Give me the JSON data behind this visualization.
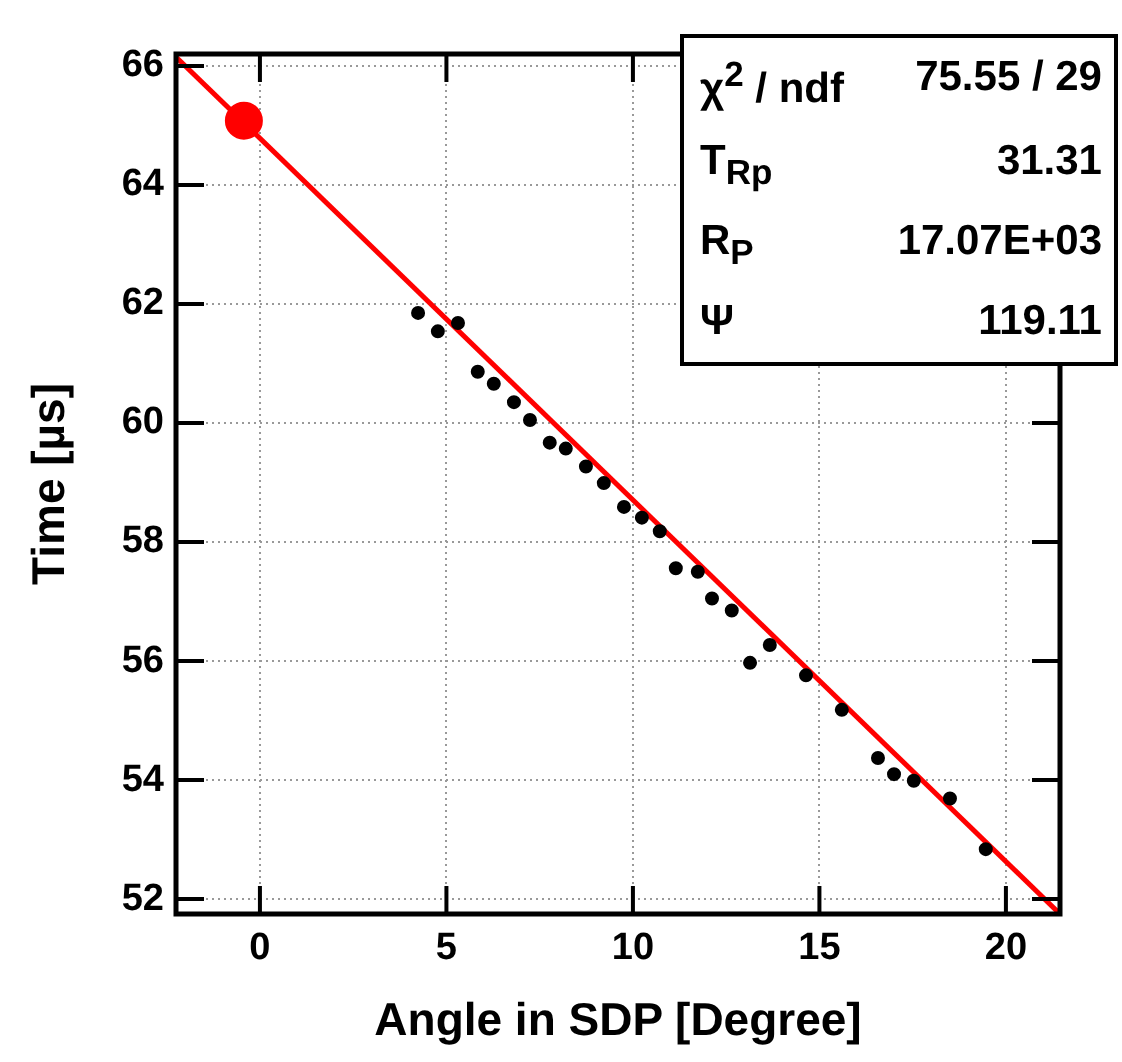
{
  "chart_data": {
    "type": "scatter",
    "xlabel": "Angle in SDP [Degree]",
    "ylabel": "Time [µs]",
    "xlim": [
      -2.25,
      21.45
    ],
    "ylim": [
      51.75,
      66.2
    ],
    "xticks": [
      0,
      5,
      10,
      15,
      20
    ],
    "yticks": [
      52,
      54,
      56,
      58,
      60,
      62,
      64,
      66
    ],
    "grid": true,
    "series": [
      {
        "color": "#000000",
        "marker": "circle",
        "x": [
          4.24,
          4.77,
          5.31,
          5.84,
          6.27,
          6.81,
          7.24,
          7.77,
          8.2,
          8.74,
          9.22,
          9.76,
          10.24,
          10.72,
          11.15,
          11.74,
          12.12,
          12.65,
          13.14,
          13.67,
          14.64,
          15.6,
          16.57,
          17.0,
          17.53,
          18.5,
          19.46
        ],
        "values": [
          61.85,
          61.54,
          61.68,
          60.86,
          60.66,
          60.35,
          60.05,
          59.67,
          59.57,
          59.27,
          58.99,
          58.59,
          58.41,
          58.18,
          57.56,
          57.5,
          57.05,
          56.85,
          55.97,
          56.27,
          55.76,
          55.18,
          54.37,
          54.1,
          53.99,
          53.69,
          52.84
        ]
      },
      {
        "color": "#ff0000",
        "marker": "circle",
        "x": [
          -0.43
        ],
        "values": [
          65.08
        ]
      },
      {
        "type": "line",
        "color": "#ff0000",
        "marker": "none",
        "x": [
          -2.25,
          21.45
        ],
        "values": [
          66.15,
          51.75
        ]
      }
    ],
    "annotations": [
      "χ$^{2}$ / ndf",
      "75.55 / 29",
      "T$_{Rp}$",
      "31.31",
      "R$_{P}$",
      "17.07E+03",
      "Ψ",
      "119.11"
    ]
  }
}
